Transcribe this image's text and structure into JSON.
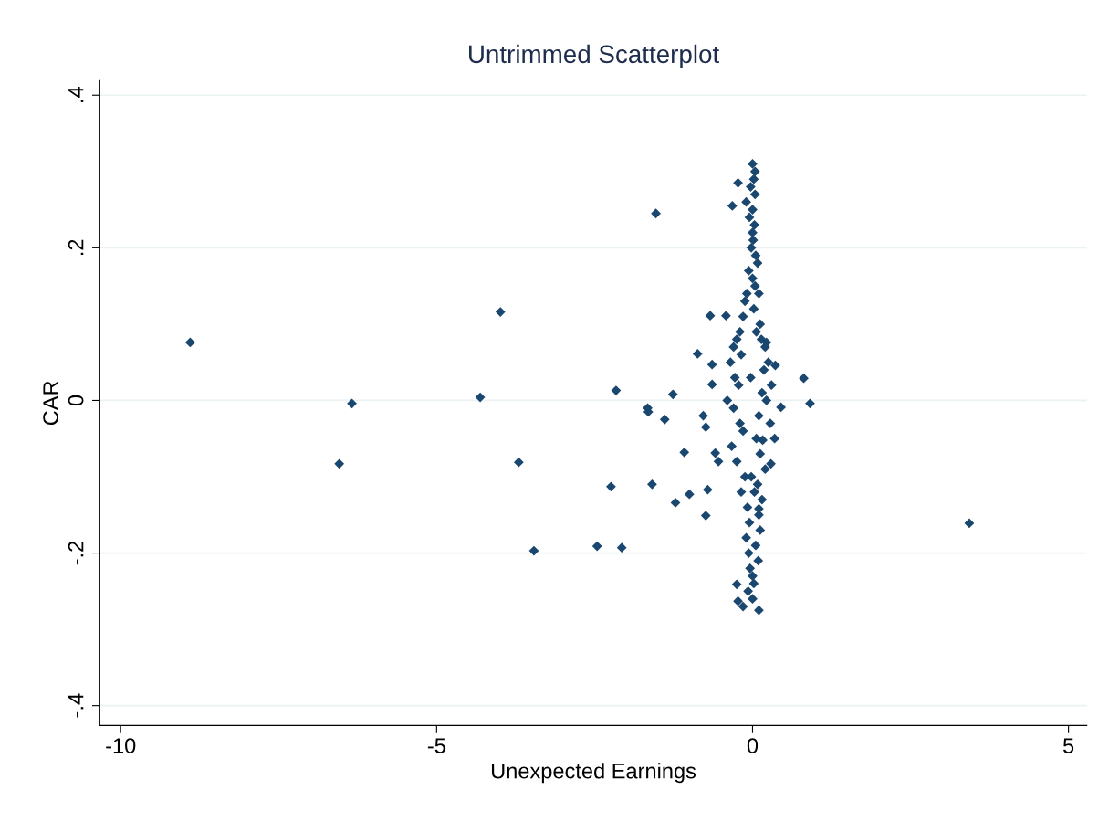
{
  "chart_data": {
    "type": "scatter",
    "title": "Untrimmed Scatterplot",
    "xlabel": "Unexpected Earnings",
    "ylabel": "CAR",
    "xlim": [
      -10.33,
      5.29
    ],
    "ylim": [
      -0.426,
      0.419
    ],
    "xticks": [
      -10,
      -5,
      0,
      5
    ],
    "yticks": [
      {
        "value": -0.4,
        "label": "-.4"
      },
      {
        "value": -0.2,
        "label": "-.2"
      },
      0,
      {
        "value": 0.2,
        "label": ".2"
      },
      {
        "value": 0.4,
        "label": ".4"
      }
    ],
    "grid": "y",
    "marker": "diamond",
    "series": [
      {
        "color": "#1a476f",
        "x": [
          -8.9,
          -6.34,
          -6.54,
          -4.31,
          -3.99,
          -3.7,
          -3.46,
          -2.46,
          -2.07,
          -2.24,
          -2.16,
          -1.53,
          -1.66,
          -1.65,
          -1.39,
          -1.26,
          -1.59,
          -1.22,
          -1.0,
          -1.08,
          -0.87,
          -0.67,
          -0.42,
          -0.64,
          -0.64,
          -0.78,
          -0.74,
          -0.74,
          -0.59,
          -0.54,
          -0.71,
          -0.23,
          -0.32,
          0.81,
          0.91,
          3.43,
          0.36,
          0.22,
          0.29,
          0.16,
          0.45,
          0.1,
          -0.25,
          -0.23,
          0.0,
          0.02,
          -0.03,
          0.04,
          0.0,
          -0.05,
          0.03,
          0.01,
          -0.02,
          0.05,
          0.08,
          -0.06,
          0.0,
          0.04,
          -0.09,
          0.1,
          -0.12,
          0.02,
          -0.15,
          0.12,
          -0.2,
          0.06,
          -0.25,
          0.14,
          -0.3,
          0.2,
          -0.18,
          0.25,
          -0.35,
          0.18,
          -0.28,
          0.3,
          -0.22,
          0.15,
          -0.4,
          0.22,
          -0.3,
          0.1,
          -0.2,
          0.28,
          -0.15,
          0.35,
          -0.33,
          0.12,
          -0.25,
          0.2,
          -0.12,
          0.08,
          -0.18,
          0.15,
          -0.08,
          0.1,
          -0.05,
          0.12,
          -0.1,
          0.05,
          -0.06,
          0.09,
          -0.04,
          0.0,
          0.03,
          -0.02,
          0.06,
          -0.03,
          0.02,
          0.0,
          -0.15,
          0.1,
          -0.07,
          0.04,
          -0.1,
          0.0
        ],
        "values": [
          0.076,
          -0.004,
          -0.083,
          0.004,
          0.116,
          -0.081,
          -0.197,
          -0.191,
          -0.193,
          -0.113,
          0.013,
          0.245,
          -0.01,
          -0.015,
          -0.025,
          0.008,
          -0.11,
          -0.134,
          -0.123,
          -0.068,
          0.061,
          0.111,
          0.111,
          0.047,
          0.021,
          -0.02,
          -0.035,
          -0.151,
          -0.069,
          -0.08,
          -0.117,
          0.285,
          0.255,
          0.029,
          -0.004,
          -0.161,
          0.046,
          0.076,
          -0.083,
          -0.052,
          -0.009,
          -0.142,
          -0.241,
          -0.263,
          0.31,
          0.29,
          0.28,
          0.27,
          0.25,
          0.24,
          0.23,
          0.21,
          0.2,
          0.19,
          0.18,
          0.17,
          0.16,
          0.15,
          0.14,
          0.14,
          0.13,
          0.12,
          0.11,
          0.1,
          0.09,
          0.09,
          0.08,
          0.08,
          0.07,
          0.07,
          0.06,
          0.05,
          0.05,
          0.04,
          0.03,
          0.02,
          0.02,
          0.01,
          0.0,
          0.0,
          -0.01,
          -0.02,
          -0.03,
          -0.03,
          -0.04,
          -0.05,
          -0.06,
          -0.07,
          -0.08,
          -0.09,
          -0.1,
          -0.11,
          -0.12,
          -0.13,
          -0.14,
          -0.15,
          -0.16,
          -0.17,
          -0.18,
          -0.19,
          -0.2,
          -0.21,
          -0.22,
          -0.23,
          -0.12,
          -0.1,
          -0.05,
          0.03,
          -0.24,
          -0.26,
          -0.27,
          -0.275,
          -0.25,
          0.3,
          0.26,
          0.22
        ]
      }
    ]
  }
}
